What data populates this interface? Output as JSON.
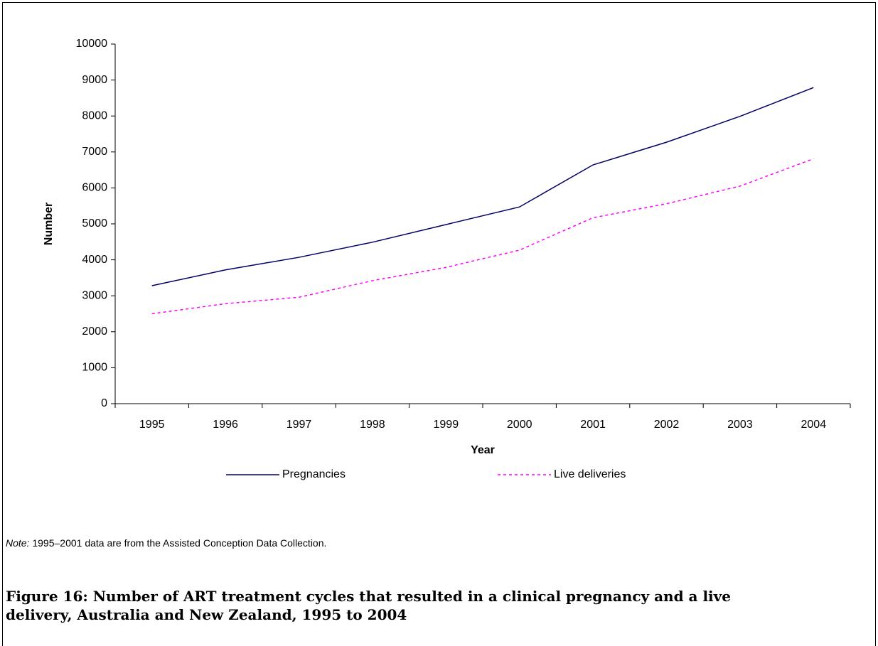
{
  "chart_data": {
    "type": "line",
    "y_label": "Number",
    "x_label": "Year",
    "categories": [
      "1995",
      "1996",
      "1997",
      "1998",
      "1999",
      "2000",
      "2001",
      "2002",
      "2003",
      "2004"
    ],
    "series": [
      {
        "name": "Pregnancies",
        "color": "#000066",
        "dash": false,
        "values": [
          3280,
          3720,
          4070,
          4490,
          4980,
          5470,
          6640,
          7270,
          7990,
          8790
        ]
      },
      {
        "name": "Live deliveries",
        "color": "#ff00ff",
        "dash": true,
        "values": [
          2500,
          2780,
          2960,
          3420,
          3790,
          4270,
          5170,
          5560,
          6050,
          6810
        ]
      }
    ],
    "ylim": [
      0,
      10000
    ],
    "yticks": [
      0,
      1000,
      2000,
      3000,
      4000,
      5000,
      6000,
      7000,
      8000,
      9000,
      10000
    ],
    "grid": false,
    "note_label": "Note:",
    "note": "1995–2001 data are from the Assisted Conception Data Collection.",
    "caption": "Figure 16: Number of ART treatment cycles that resulted in a clinical pregnancy and a live delivery, Australia and New Zealand, 1995 to 2004"
  }
}
